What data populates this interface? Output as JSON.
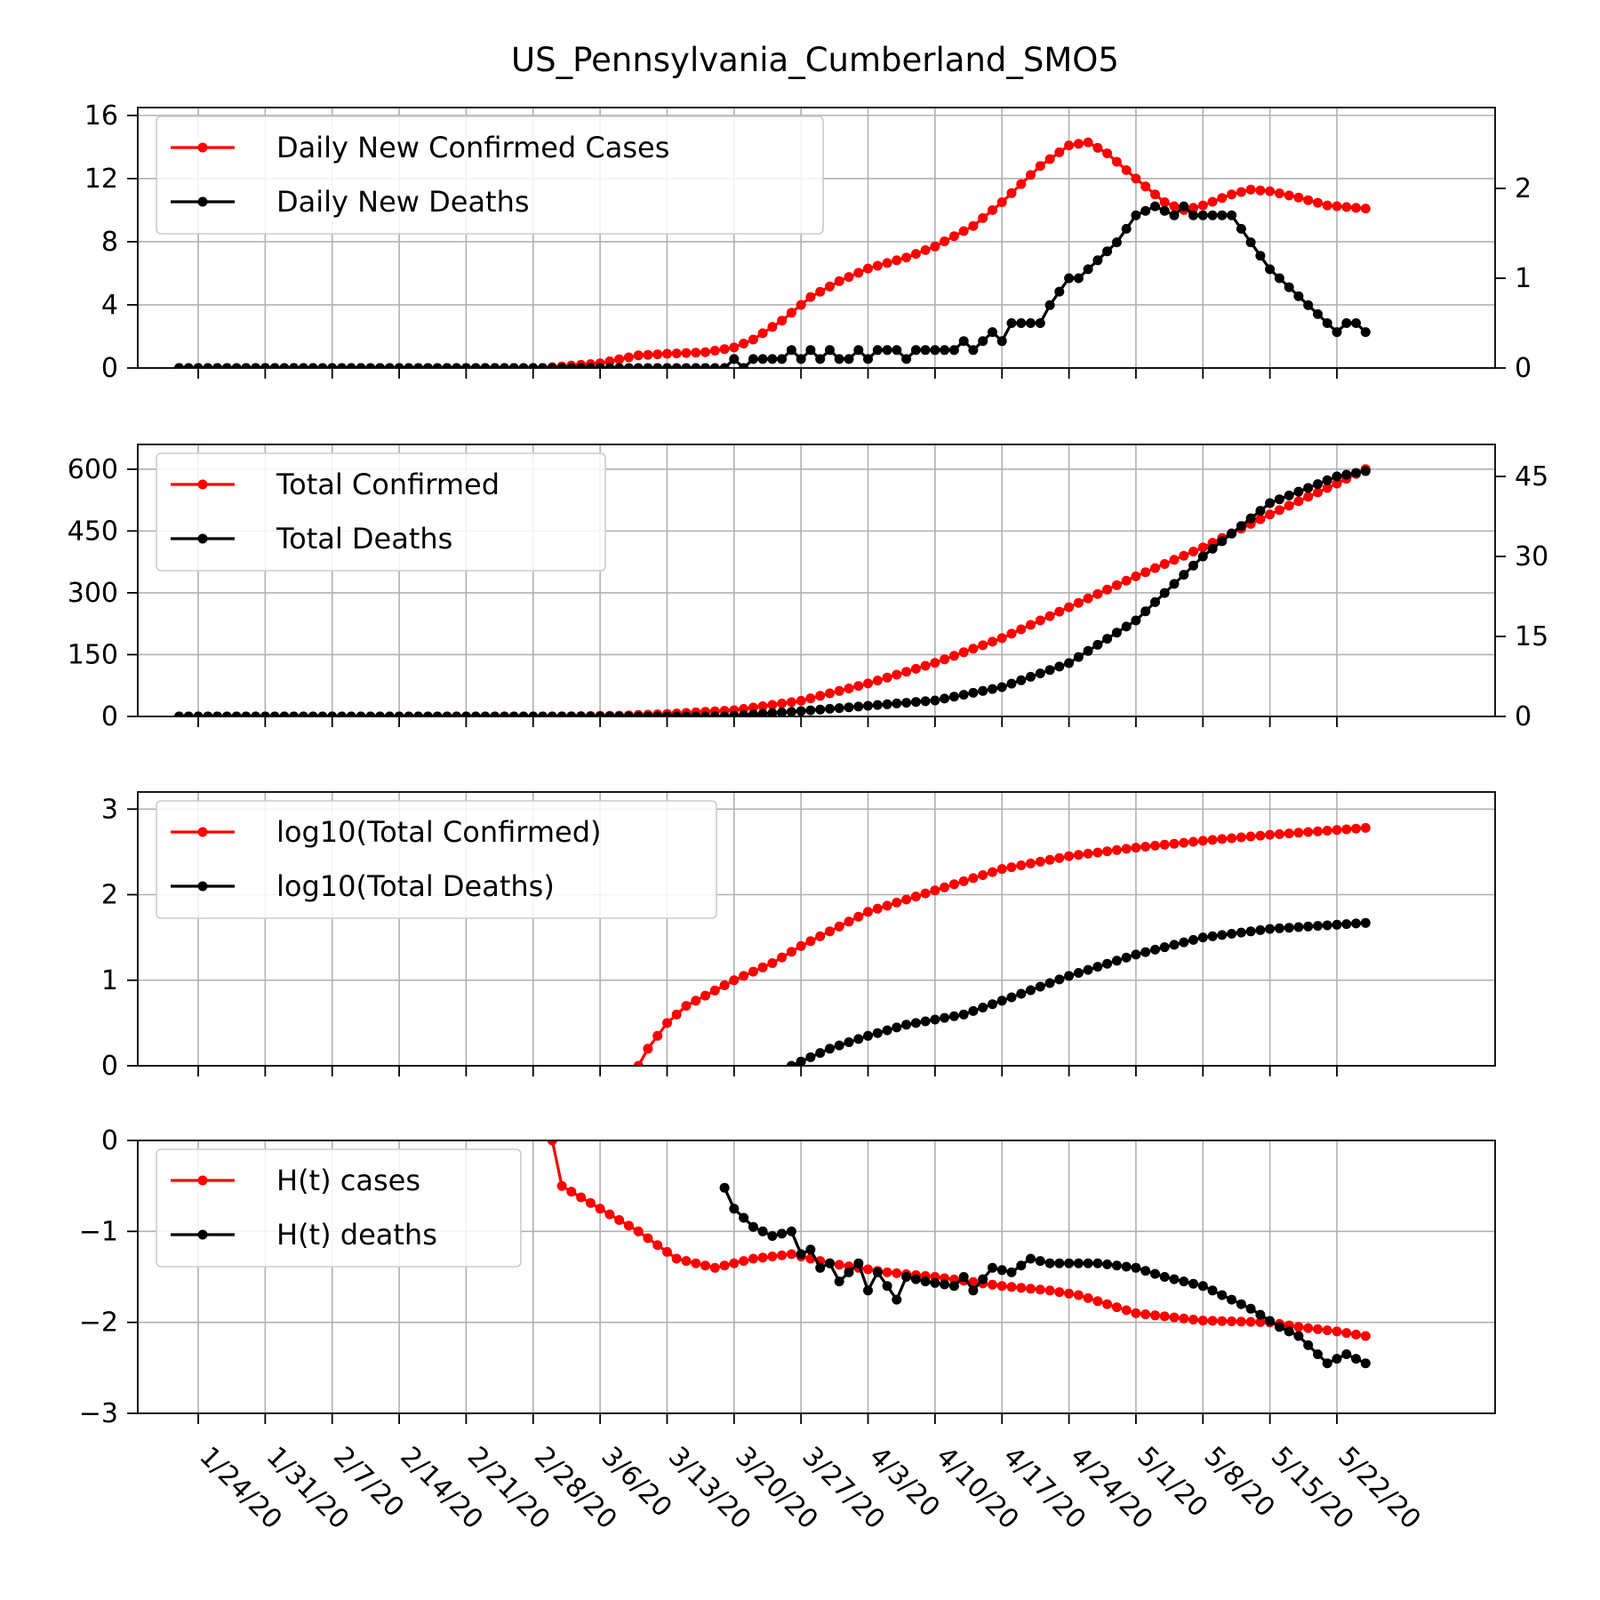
{
  "chart_data": {
    "type": "line",
    "title": "US_Pennsylvania_Cumberland_SMO5",
    "colors": {
      "cases": "#ff0000",
      "deaths": "#000000"
    },
    "x_axis": {
      "start": "1/22/20",
      "end": "5/24/20",
      "tick_labels": [
        "1/24/20",
        "1/31/20",
        "2/7/20",
        "2/14/20",
        "2/21/20",
        "2/28/20",
        "3/6/20",
        "3/13/20",
        "3/20/20",
        "3/27/20",
        "4/3/20",
        "4/10/20",
        "4/17/20",
        "4/24/20",
        "5/1/20",
        "5/8/20",
        "5/15/20",
        "5/22/20"
      ],
      "label_rotation": "-45 degrees"
    },
    "grid": true,
    "legend_position": "top-left",
    "panels": [
      {
        "id": "daily",
        "left_ylim": [
          0,
          16.5
        ],
        "left_ticks": [
          0,
          4,
          8,
          12,
          16
        ],
        "right_ylim": [
          0,
          2.9
        ],
        "right_ticks": [
          0,
          1,
          2
        ],
        "series": [
          {
            "name": "Daily New Confirmed Cases",
            "axis": "left",
            "color": "#ff0000",
            "points": [
              [
                "1/22/20",
                0
              ],
              [
                "2/29/20",
                0
              ],
              [
                "3/6/20",
                0.3
              ],
              [
                "3/10/20",
                0.8
              ],
              [
                "3/13/20",
                0.9
              ],
              [
                "3/17/20",
                1
              ],
              [
                "3/20/20",
                1.3
              ],
              [
                "3/22/20",
                1.8
              ],
              [
                "3/25/20",
                3
              ],
              [
                "3/28/20",
                4.5
              ],
              [
                "3/31/20",
                5.5
              ],
              [
                "4/3/20",
                6.3
              ],
              [
                "4/7/20",
                7
              ],
              [
                "4/10/20",
                7.7
              ],
              [
                "4/14/20",
                9
              ],
              [
                "4/17/20",
                10.5
              ],
              [
                "4/21/20",
                12.8
              ],
              [
                "4/24/20",
                14.1
              ],
              [
                "4/26/20",
                14.3
              ],
              [
                "4/28/20",
                13.6
              ],
              [
                "5/1/20",
                12
              ],
              [
                "5/4/20",
                10.5
              ],
              [
                "5/6/20",
                10
              ],
              [
                "5/8/20",
                10.3
              ],
              [
                "5/11/20",
                11
              ],
              [
                "5/13/20",
                11.3
              ],
              [
                "5/15/20",
                11.2
              ],
              [
                "5/18/20",
                10.8
              ],
              [
                "5/21/20",
                10.3
              ],
              [
                "5/25/20",
                10.1
              ]
            ]
          },
          {
            "name": "Daily New Deaths",
            "axis": "right",
            "color": "#000000",
            "points": [
              [
                "1/22/20",
                0
              ],
              [
                "3/19/20",
                0
              ],
              [
                "3/20/20",
                0.1
              ],
              [
                "3/21/20",
                0
              ],
              [
                "3/22/20",
                0.1
              ],
              [
                "3/25/20",
                0.1
              ],
              [
                "3/26/20",
                0.2
              ],
              [
                "3/27/20",
                0.1
              ],
              [
                "3/28/20",
                0.2
              ],
              [
                "3/29/20",
                0.1
              ],
              [
                "3/30/20",
                0.2
              ],
              [
                "3/31/20",
                0.1
              ],
              [
                "4/1/20",
                0.1
              ],
              [
                "4/2/20",
                0.2
              ],
              [
                "4/3/20",
                0.1
              ],
              [
                "4/4/20",
                0.2
              ],
              [
                "4/6/20",
                0.2
              ],
              [
                "4/7/20",
                0.1
              ],
              [
                "4/8/20",
                0.2
              ],
              [
                "4/12/20",
                0.2
              ],
              [
                "4/13/20",
                0.3
              ],
              [
                "4/14/20",
                0.2
              ],
              [
                "4/16/20",
                0.4
              ],
              [
                "4/17/20",
                0.3
              ],
              [
                "4/18/20",
                0.5
              ],
              [
                "4/21/20",
                0.5
              ],
              [
                "4/22/20",
                0.7
              ],
              [
                "4/24/20",
                1
              ],
              [
                "4/25/20",
                1
              ],
              [
                "4/27/20",
                1.2
              ],
              [
                "4/29/20",
                1.4
              ],
              [
                "5/1/20",
                1.7
              ],
              [
                "5/3/20",
                1.8
              ],
              [
                "5/5/20",
                1.7
              ],
              [
                "5/6/20",
                1.8
              ],
              [
                "5/7/20",
                1.7
              ],
              [
                "5/11/20",
                1.7
              ],
              [
                "5/13/20",
                1.4
              ],
              [
                "5/15/20",
                1.1
              ],
              [
                "5/17/20",
                0.9
              ],
              [
                "5/19/20",
                0.7
              ],
              [
                "5/21/20",
                0.5
              ],
              [
                "5/22/20",
                0.4
              ],
              [
                "5/23/20",
                0.5
              ],
              [
                "5/24/20",
                0.5
              ],
              [
                "5/25/20",
                0.4
              ]
            ]
          }
        ]
      },
      {
        "id": "total",
        "left_ylim": [
          0,
          660
        ],
        "left_ticks": [
          0,
          150,
          300,
          450,
          600
        ],
        "right_ylim": [
          0,
          51
        ],
        "right_ticks": [
          0,
          15,
          30,
          45
        ],
        "series": [
          {
            "name": "Total Confirmed",
            "axis": "left",
            "color": "#ff0000",
            "points": [
              [
                "1/22/20",
                0
              ],
              [
                "3/1/20",
                0
              ],
              [
                "3/8/20",
                2
              ],
              [
                "3/13/20",
                6
              ],
              [
                "3/20/20",
                15
              ],
              [
                "3/27/20",
                38
              ],
              [
                "4/3/20",
                80
              ],
              [
                "4/10/20",
                130
              ],
              [
                "4/17/20",
                190
              ],
              [
                "4/24/20",
                265
              ],
              [
                "5/1/20",
                340
              ],
              [
                "5/8/20",
                410
              ],
              [
                "5/15/20",
                490
              ],
              [
                "5/22/20",
                565
              ],
              [
                "5/25/20",
                600
              ]
            ]
          },
          {
            "name": "Total Deaths",
            "axis": "right",
            "color": "#000000",
            "points": [
              [
                "1/22/20",
                0
              ],
              [
                "3/19/20",
                0
              ],
              [
                "3/27/20",
                1
              ],
              [
                "4/3/20",
                2
              ],
              [
                "4/10/20",
                3
              ],
              [
                "4/17/20",
                5.5
              ],
              [
                "4/24/20",
                10
              ],
              [
                "5/1/20",
                18
              ],
              [
                "5/8/20",
                30
              ],
              [
                "5/15/20",
                40
              ],
              [
                "5/22/20",
                45
              ],
              [
                "5/25/20",
                46
              ]
            ]
          }
        ]
      },
      {
        "id": "log",
        "left_ylim": [
          0,
          3.2
        ],
        "left_ticks": [
          0,
          1,
          2,
          3
        ],
        "series": [
          {
            "name": "log10(Total Confirmed)",
            "axis": "left",
            "color": "#ff0000",
            "points": [
              [
                "3/10/20",
                0
              ],
              [
                "3/11/20",
                0.2
              ],
              [
                "3/13/20",
                0.5
              ],
              [
                "3/15/20",
                0.7
              ],
              [
                "3/20/20",
                1.0
              ],
              [
                "3/24/20",
                1.2
              ],
              [
                "3/27/20",
                1.4
              ],
              [
                "4/3/20",
                1.8
              ],
              [
                "4/10/20",
                2.05
              ],
              [
                "4/17/20",
                2.3
              ],
              [
                "4/24/20",
                2.45
              ],
              [
                "5/1/20",
                2.55
              ],
              [
                "5/8/20",
                2.63
              ],
              [
                "5/15/20",
                2.7
              ],
              [
                "5/25/20",
                2.78
              ]
            ]
          },
          {
            "name": "log10(Total Deaths)",
            "axis": "left",
            "color": "#000000",
            "points": [
              [
                "3/26/20",
                0
              ],
              [
                "3/27/20",
                0.05
              ],
              [
                "3/30/20",
                0.2
              ],
              [
                "4/3/20",
                0.35
              ],
              [
                "4/7/20",
                0.48
              ],
              [
                "4/13/20",
                0.6
              ],
              [
                "4/18/20",
                0.8
              ],
              [
                "4/24/20",
                1.05
              ],
              [
                "5/1/20",
                1.3
              ],
              [
                "5/8/20",
                1.5
              ],
              [
                "5/15/20",
                1.6
              ],
              [
                "5/25/20",
                1.67
              ]
            ]
          }
        ]
      },
      {
        "id": "hurst",
        "left_ylim": [
          -3,
          0
        ],
        "left_ticks": [
          0,
          -1,
          -2,
          -3
        ],
        "series": [
          {
            "name": "H(t) cases",
            "axis": "left",
            "color": "#ff0000",
            "points": [
              [
                "3/1/20",
                0
              ],
              [
                "3/2/20",
                -0.5
              ],
              [
                "3/6/20",
                -0.75
              ],
              [
                "3/10/20",
                -1.0
              ],
              [
                "3/14/20",
                -1.3
              ],
              [
                "3/18/20",
                -1.4
              ],
              [
                "3/20/20",
                -1.35
              ],
              [
                "3/22/20",
                -1.3
              ],
              [
                "3/26/20",
                -1.25
              ],
              [
                "3/30/20",
                -1.35
              ],
              [
                "4/5/20",
                -1.45
              ],
              [
                "4/10/20",
                -1.5
              ],
              [
                "4/17/20",
                -1.6
              ],
              [
                "4/22/20",
                -1.65
              ],
              [
                "4/25/20",
                -1.7
              ],
              [
                "5/1/20",
                -1.9
              ],
              [
                "5/8/20",
                -1.98
              ],
              [
                "5/15/20",
                -2.0
              ],
              [
                "5/18/20",
                -2.05
              ],
              [
                "5/22/20",
                -2.1
              ],
              [
                "5/25/20",
                -2.15
              ]
            ]
          },
          {
            "name": "H(t) deaths",
            "axis": "left",
            "color": "#000000",
            "points": [
              [
                "3/19/20",
                -0.52
              ],
              [
                "3/20/20",
                -0.75
              ],
              [
                "3/22/20",
                -0.95
              ],
              [
                "3/24/20",
                -1.05
              ],
              [
                "3/26/20",
                -1.0
              ],
              [
                "3/27/20",
                -1.25
              ],
              [
                "3/28/20",
                -1.2
              ],
              [
                "3/29/20",
                -1.4
              ],
              [
                "3/30/20",
                -1.35
              ],
              [
                "3/31/20",
                -1.55
              ],
              [
                "4/1/20",
                -1.45
              ],
              [
                "4/2/20",
                -1.35
              ],
              [
                "4/3/20",
                -1.65
              ],
              [
                "4/4/20",
                -1.45
              ],
              [
                "4/6/20",
                -1.75
              ],
              [
                "4/7/20",
                -1.5
              ],
              [
                "4/9/20",
                -1.55
              ],
              [
                "4/12/20",
                -1.6
              ],
              [
                "4/13/20",
                -1.5
              ],
              [
                "4/14/20",
                -1.65
              ],
              [
                "4/16/20",
                -1.4
              ],
              [
                "4/18/20",
                -1.45
              ],
              [
                "4/20/20",
                -1.3
              ],
              [
                "4/22/20",
                -1.35
              ],
              [
                "4/27/20",
                -1.35
              ],
              [
                "5/1/20",
                -1.4
              ],
              [
                "5/4/20",
                -1.5
              ],
              [
                "5/8/20",
                -1.6
              ],
              [
                "5/10/20",
                -1.7
              ],
              [
                "5/13/20",
                -1.85
              ],
              [
                "5/16/20",
                -2.05
              ],
              [
                "5/18/20",
                -2.15
              ],
              [
                "5/20/20",
                -2.35
              ],
              [
                "5/21/20",
                -2.45
              ],
              [
                "5/23/20",
                -2.35
              ],
              [
                "5/25/20",
                -2.45
              ]
            ]
          }
        ]
      }
    ]
  }
}
